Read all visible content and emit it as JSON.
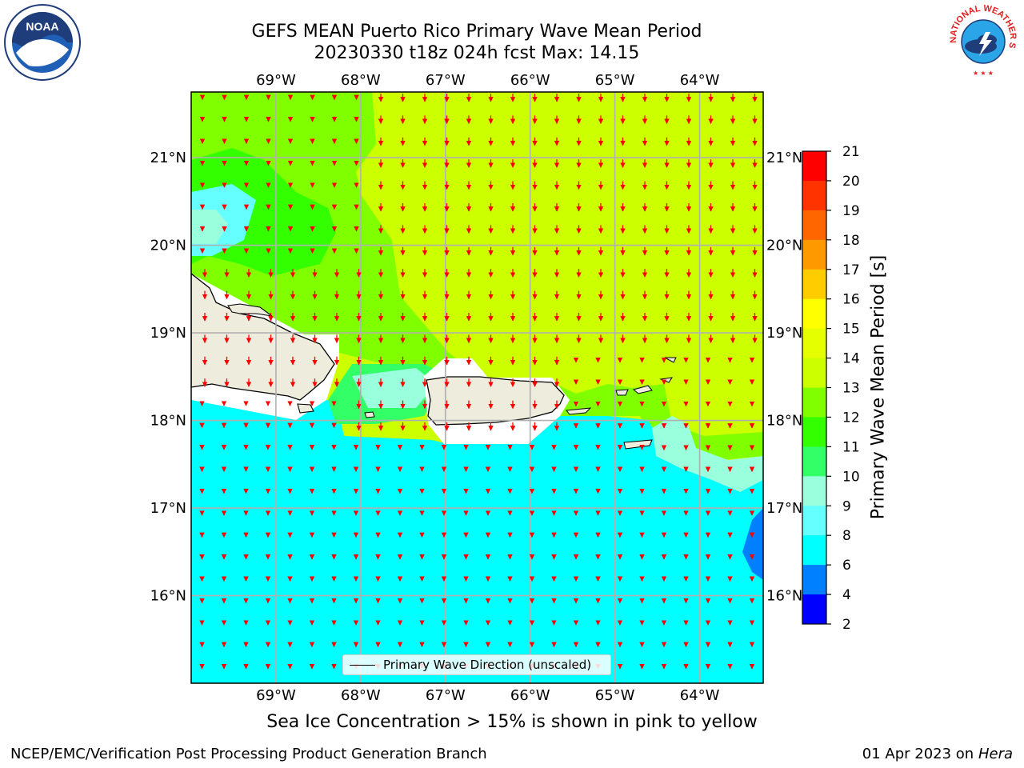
{
  "header": {
    "title_line1": "GEFS MEAN Puerto Rico Primary Wave Mean Period",
    "title_line2": "20230330 t18z 024h fcst   Max: 14.15"
  },
  "map": {
    "lon_labels": [
      "69°W",
      "68°W",
      "67°W",
      "66°W",
      "65°W",
      "64°W"
    ],
    "lat_labels": [
      "21°N",
      "20°N",
      "19°N",
      "18°N",
      "17°N",
      "16°N"
    ],
    "lon_values": [
      -69,
      -68,
      -67,
      -66,
      -65,
      -64
    ],
    "lat_values": [
      21,
      20,
      19,
      18,
      17,
      16
    ],
    "lon_range": [
      -70,
      -63.25
    ],
    "lat_range": [
      15.0,
      21.75
    ],
    "legend_label": "Primary Wave Direction (unscaled)",
    "arrow_color": "#ff0000",
    "land_color": "#eeecdc"
  },
  "colorbar": {
    "label": "Primary Wave Mean Period [s]",
    "ticks": [
      "21",
      "20",
      "19",
      "18",
      "17",
      "16",
      "15",
      "14",
      "13",
      "12",
      "11",
      "10",
      "9",
      "8",
      "6",
      "4",
      "2"
    ],
    "colors": [
      "#ff0000",
      "#ff3300",
      "#ff6600",
      "#ff9900",
      "#ffcc00",
      "#ffff00",
      "#e5ff00",
      "#ccff00",
      "#80ff00",
      "#33ff00",
      "#33ff66",
      "#99ffdd",
      "#66ffff",
      "#00ffff",
      "#0080ff",
      "#0000ff"
    ]
  },
  "notes": {
    "sea_ice": "Sea Ice Concentration > 15% is shown in pink to yellow"
  },
  "footer": {
    "left": "NCEP/EMC/Verification Post Processing Product Generation Branch",
    "right_date": "01 Apr 2023 on ",
    "right_host": "Hera"
  },
  "logos": {
    "noaa_text": "NOAA",
    "nws_text": "NATIONAL WEATHER SERVICE"
  }
}
